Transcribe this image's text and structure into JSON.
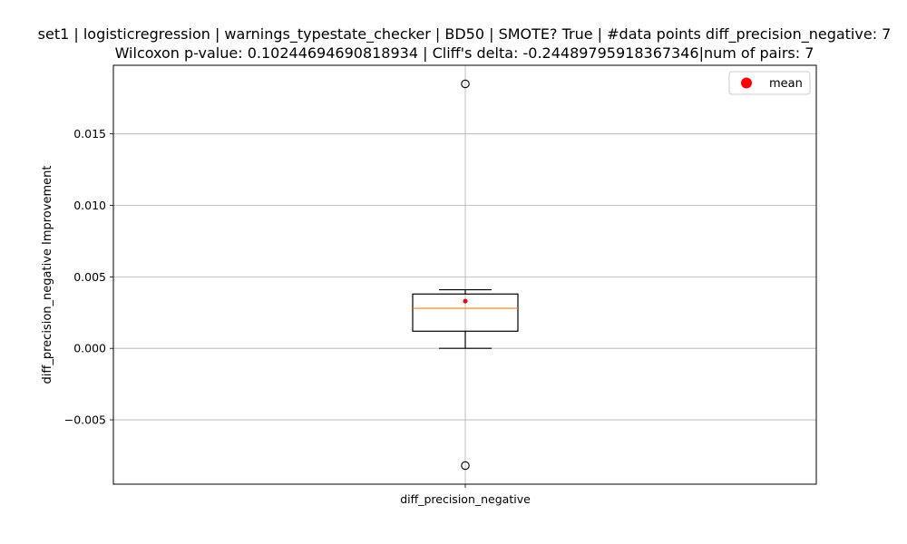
{
  "chart_data": {
    "type": "box",
    "title_line1": "set1 | logisticregression | warnings_typestate_checker | BD50 | SMOTE? True | #data points diff_precision_negative: 7",
    "title_line2": "Wilcoxon p-value: 0.10244694690818934 | Cliff's delta: -0.24489795918367346|num of pairs: 7",
    "xlabel": "",
    "ylabel": "diff_precision_negative Improvement",
    "categories": [
      "diff_precision_negative"
    ],
    "ylim": [
      -0.0095,
      0.0198
    ],
    "yticks": [
      -0.005,
      0.0,
      0.005,
      0.01,
      0.015
    ],
    "ytick_labels": [
      "−0.005",
      "0.000",
      "0.005",
      "0.010",
      "0.015"
    ],
    "grid": true,
    "box": {
      "whisker_low": 0.0,
      "q1": 0.0012,
      "median": 0.0028,
      "q3": 0.0038,
      "whisker_high": 0.0041,
      "mean": 0.0033,
      "outliers": [
        0.0185,
        -0.0082
      ]
    },
    "colors": {
      "box": "#000000",
      "median": "#ff7f0e",
      "mean": "#ff0000",
      "grid": "#b0b0b0"
    },
    "legend": {
      "position": "top-right",
      "entries": [
        {
          "label": "mean",
          "color": "#ff0000",
          "marker": "circle"
        }
      ]
    }
  }
}
